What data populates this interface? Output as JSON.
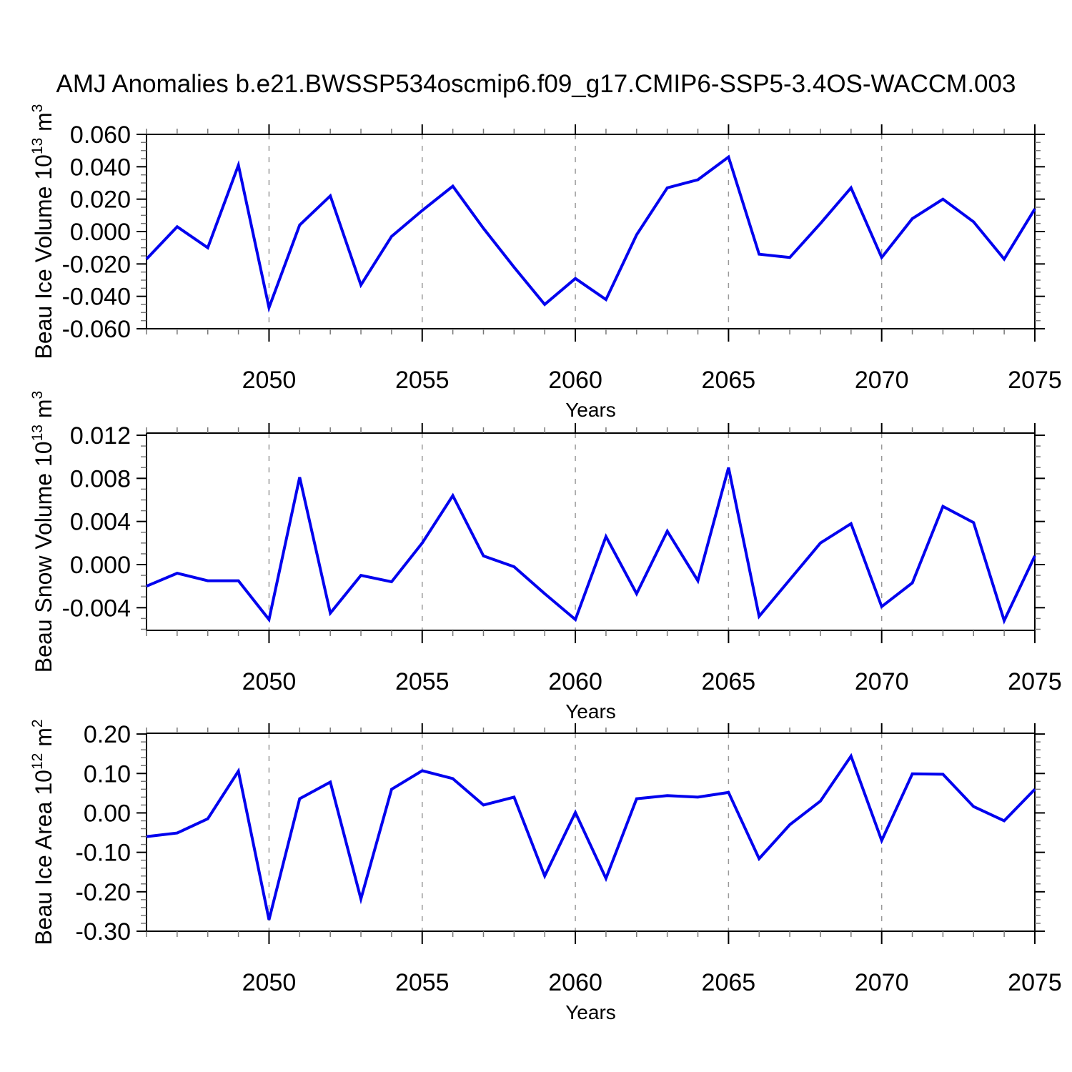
{
  "figure": {
    "title": "AMJ Anomalies b.e21.BWSSP534oscmip6.f09_g17.CMIP6-SSP5-3.4OS-WACCM.003",
    "line_color": "#0202ee",
    "gridline_color": "#999999",
    "axis_color": "#000000",
    "minor_tick_color": "#777777"
  },
  "chart_data": [
    {
      "type": "line",
      "ylabel": "Beau Ice Volume 10^13 m^3",
      "ylabel_rich": [
        {
          "t": "Beau Ice Volume 10"
        },
        {
          "t": "13",
          "sup": true
        },
        {
          "t": " m"
        },
        {
          "t": "3",
          "sup": true
        }
      ],
      "xlabel": "Years",
      "x": [
        2046,
        2047,
        2048,
        2049,
        2050,
        2051,
        2052,
        2053,
        2054,
        2055,
        2056,
        2057,
        2058,
        2059,
        2060,
        2061,
        2062,
        2063,
        2064,
        2065,
        2066,
        2067,
        2068,
        2069,
        2070,
        2071,
        2072,
        2073,
        2074,
        2075
      ],
      "values": [
        -0.017,
        0.003,
        -0.01,
        0.041,
        -0.047,
        0.004,
        0.022,
        -0.033,
        -0.003,
        0.013,
        0.028,
        0.002,
        -0.022,
        -0.045,
        -0.029,
        -0.042,
        -0.002,
        0.027,
        0.032,
        0.046,
        -0.014,
        -0.016,
        0.005,
        0.027,
        -0.016,
        0.008,
        0.02,
        0.006,
        -0.017,
        0.014
      ],
      "ylim": [
        -0.06,
        0.06
      ],
      "yticks": [
        0.06,
        0.04,
        0.02,
        0.0,
        -0.02,
        -0.04,
        -0.06
      ],
      "ytick_labels": [
        "0.060",
        "0.040",
        "0.020",
        "0.000",
        "-0.020",
        "-0.040",
        "-0.060"
      ],
      "y_minor_step": 0.005,
      "xlim": [
        2046,
        2075
      ],
      "xticks": [
        2050,
        2055,
        2060,
        2065,
        2070,
        2075
      ],
      "xtick_labels": [
        "2050",
        "2055",
        "2060",
        "2065",
        "2070",
        "2075"
      ],
      "x_minor_step": 1,
      "gridlines_x": [
        2050,
        2055,
        2060,
        2065,
        2070
      ],
      "grid": "vertical-dashed",
      "legend": "none"
    },
    {
      "type": "line",
      "ylabel": "Beau Snow Volume 10^13 m^3",
      "ylabel_rich": [
        {
          "t": "Beau Snow Volume 10"
        },
        {
          "t": "13",
          "sup": true
        },
        {
          "t": " m"
        },
        {
          "t": "3",
          "sup": true
        }
      ],
      "xlabel": "Years",
      "x": [
        2046,
        2047,
        2048,
        2049,
        2050,
        2051,
        2052,
        2053,
        2054,
        2055,
        2056,
        2057,
        2058,
        2059,
        2060,
        2061,
        2062,
        2063,
        2064,
        2065,
        2066,
        2067,
        2068,
        2069,
        2070,
        2071,
        2072,
        2073,
        2074,
        2075
      ],
      "values": [
        -0.002,
        -0.0008,
        -0.0015,
        -0.0015,
        -0.0051,
        0.0081,
        -0.0045,
        -0.001,
        -0.0016,
        0.002,
        0.0064,
        0.0008,
        -0.0002,
        -0.0027,
        -0.0051,
        0.0026,
        -0.0027,
        0.0031,
        -0.0015,
        0.009,
        -0.0048,
        -0.0014,
        0.002,
        0.0038,
        -0.0039,
        -0.0017,
        0.0054,
        0.0039,
        -0.0052,
        0.0008
      ],
      "ylim": [
        -0.0061,
        0.0122
      ],
      "yticks": [
        0.012,
        0.008,
        0.004,
        0.0,
        -0.004
      ],
      "ytick_labels": [
        "0.012",
        "0.008",
        "0.004",
        "0.000",
        "-0.004"
      ],
      "y_minor_step": 0.001,
      "xlim": [
        2046,
        2075
      ],
      "xticks": [
        2050,
        2055,
        2060,
        2065,
        2070,
        2075
      ],
      "xtick_labels": [
        "2050",
        "2055",
        "2060",
        "2065",
        "2070",
        "2075"
      ],
      "x_minor_step": 1,
      "gridlines_x": [
        2050,
        2055,
        2060,
        2065,
        2070
      ],
      "grid": "vertical-dashed",
      "legend": "none"
    },
    {
      "type": "line",
      "ylabel": "Beau Ice Area 10^12 m^2",
      "ylabel_rich": [
        {
          "t": "Beau Ice Area 10"
        },
        {
          "t": "12",
          "sup": true
        },
        {
          "t": " m"
        },
        {
          "t": "2",
          "sup": true
        }
      ],
      "xlabel": "Years",
      "x": [
        2046,
        2047,
        2048,
        2049,
        2050,
        2051,
        2052,
        2053,
        2054,
        2055,
        2056,
        2057,
        2058,
        2059,
        2060,
        2061,
        2062,
        2063,
        2064,
        2065,
        2066,
        2067,
        2068,
        2069,
        2070,
        2071,
        2072,
        2073,
        2074,
        2075
      ],
      "values": [
        -0.06,
        -0.051,
        -0.015,
        0.106,
        -0.271,
        0.036,
        0.078,
        -0.218,
        0.06,
        0.107,
        0.087,
        0.02,
        0.04,
        -0.16,
        0.001,
        -0.166,
        0.036,
        0.044,
        0.04,
        0.052,
        -0.116,
        -0.03,
        0.03,
        0.144,
        -0.07,
        0.099,
        0.098,
        0.016,
        -0.02,
        0.06
      ],
      "ylim": [
        -0.3,
        0.202
      ],
      "yticks": [
        0.2,
        0.1,
        0.0,
        -0.1,
        -0.2,
        -0.3
      ],
      "ytick_labels": [
        "0.20",
        "0.10",
        "0.00",
        "-0.10",
        "-0.20",
        "-0.30"
      ],
      "y_minor_step": 0.02,
      "xlim": [
        2046,
        2075
      ],
      "xticks": [
        2050,
        2055,
        2060,
        2065,
        2070,
        2075
      ],
      "xtick_labels": [
        "2050",
        "2055",
        "2060",
        "2065",
        "2070",
        "2075"
      ],
      "x_minor_step": 1,
      "gridlines_x": [
        2050,
        2055,
        2060,
        2065,
        2070
      ],
      "grid": "vertical-dashed",
      "legend": "none"
    }
  ]
}
